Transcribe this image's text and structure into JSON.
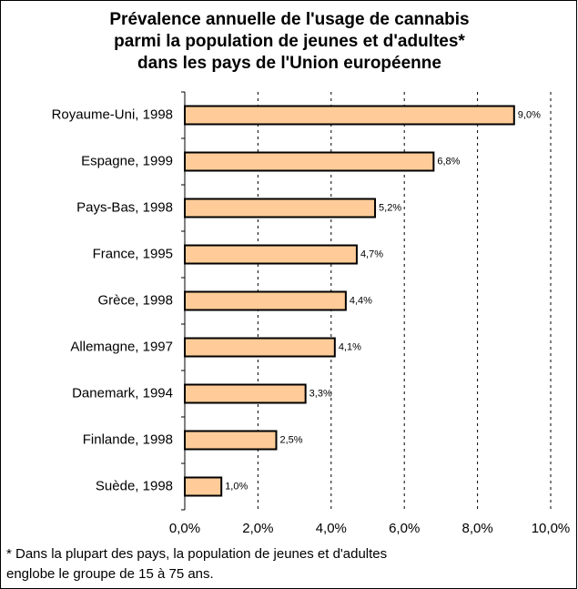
{
  "chart_data": {
    "type": "bar",
    "orientation": "horizontal",
    "title": [
      "Prévalence annuelle de l'usage de cannabis",
      "parmi la population de jeunes et d'adultes*",
      "dans les pays de l'Union européenne"
    ],
    "categories": [
      "Royaume-Uni, 1998",
      "Espagne, 1999",
      "Pays-Bas, 1998",
      "France, 1995",
      "Grèce, 1998",
      "Allemagne, 1997",
      "Danemark, 1994",
      "Finlande, 1998",
      "Suède, 1998"
    ],
    "values": [
      9.0,
      6.8,
      5.2,
      4.7,
      4.4,
      4.1,
      3.3,
      2.5,
      1.0
    ],
    "value_labels": [
      "9,0%",
      "6,8%",
      "5,2%",
      "4,7%",
      "4,4%",
      "4,1%",
      "3,3%",
      "2,5%",
      "1,0%"
    ],
    "color": "#ffcc99",
    "xlim": [
      0,
      10
    ],
    "xticks": [
      {
        "value": 0,
        "label": "0,0%"
      },
      {
        "value": 2,
        "label": "2,0%"
      },
      {
        "value": 4,
        "label": "4,0%"
      },
      {
        "value": 6,
        "label": "6,0%"
      },
      {
        "value": 8,
        "label": "8,0%"
      },
      {
        "value": 10,
        "label": "10,0%"
      }
    ],
    "grid": true,
    "footnote": [
      "* Dans la plupart des pays, la population de jeunes et d'adultes",
      "englobe le groupe de 15 à 75 ans."
    ]
  }
}
